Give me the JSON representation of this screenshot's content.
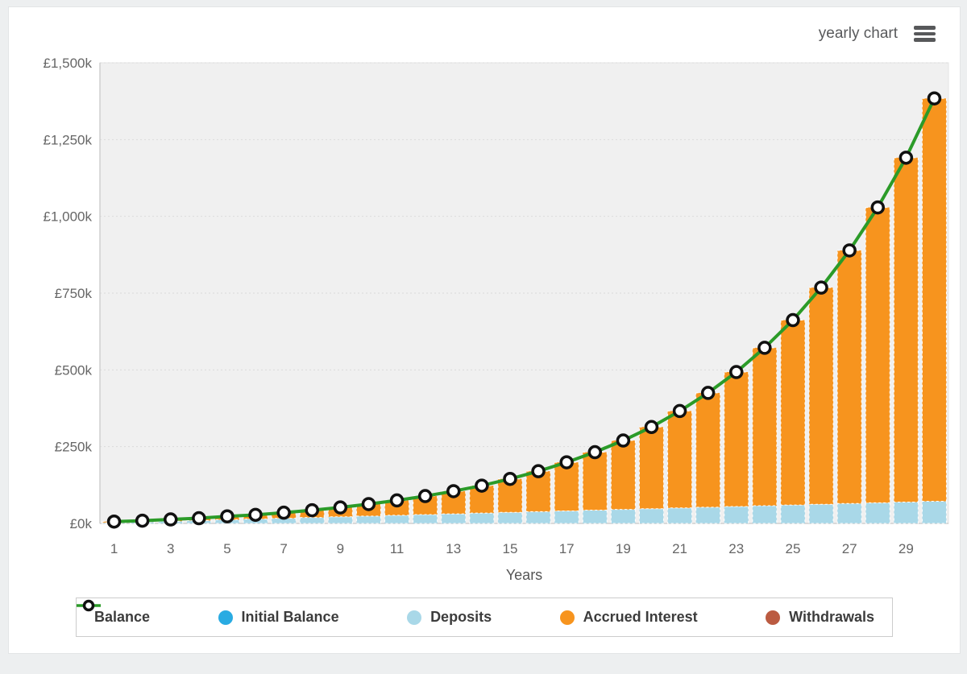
{
  "header": {
    "title": "yearly chart"
  },
  "chart_data": {
    "type": "stacked-bar-with-line",
    "title": "",
    "xlabel": "Years",
    "ylabel": "",
    "x": [
      1,
      2,
      3,
      4,
      5,
      6,
      7,
      8,
      9,
      10,
      11,
      12,
      13,
      14,
      15,
      16,
      17,
      18,
      19,
      20,
      21,
      22,
      23,
      24,
      25,
      26,
      27,
      28,
      29,
      30
    ],
    "x_tick_labels": [
      "1",
      "3",
      "5",
      "7",
      "9",
      "11",
      "13",
      "15",
      "17",
      "19",
      "21",
      "23",
      "25",
      "27",
      "29"
    ],
    "ylim": [
      0,
      1500
    ],
    "y_unit": "thousand GBP",
    "y_tick_values": [
      0,
      250,
      500,
      750,
      1000,
      1250,
      1500
    ],
    "y_tick_labels": [
      "£0k",
      "£250k",
      "£500k",
      "£750k",
      "£1,000k",
      "£1,250k",
      "£1,500k"
    ],
    "grid": "horizontal-dotted",
    "legend_position": "bottom",
    "plot_bg": "#F0F0F0",
    "series": [
      {
        "name": "Balance",
        "type": "line",
        "color": "#2B9B28",
        "marker": "open-circle",
        "values": [
          6,
          9,
          13,
          17,
          23,
          28,
          35,
          43,
          52,
          63,
          75,
          89,
          105,
          123,
          145,
          170,
          199,
          232,
          270,
          314,
          366,
          425,
          493,
          572,
          662,
          768,
          889,
          1029,
          1191,
          1384
        ]
      },
      {
        "name": "Initial Balance",
        "type": "bar",
        "color": "#29ABE2",
        "visible_bars": false,
        "values": []
      },
      {
        "name": "Deposits",
        "type": "bar",
        "color": "#A9D8E8",
        "visible_bars": true,
        "values": [
          2.4,
          4.8,
          7.2,
          9.6,
          12,
          14.4,
          16.8,
          19.2,
          21.6,
          24,
          26.4,
          28.8,
          31.2,
          33.6,
          36,
          38.4,
          40.8,
          43.2,
          45.6,
          48,
          50.4,
          52.8,
          55.2,
          57.6,
          60,
          62.4,
          64.8,
          67.2,
          69.6,
          72
        ]
      },
      {
        "name": "Accrued Interest",
        "type": "bar",
        "color": "#F7941E",
        "visible_bars": true,
        "values": [
          3.6,
          4.2,
          5.8,
          7.4,
          11,
          13.6,
          18.2,
          23.8,
          30.4,
          39,
          48.6,
          60.2,
          73.8,
          89.4,
          109,
          131.6,
          158.2,
          188.8,
          224.4,
          266,
          315.6,
          372.2,
          437.8,
          514.4,
          602,
          705.6,
          824.2,
          961.8,
          1121.4,
          1312
        ]
      },
      {
        "name": "Withdrawals",
        "type": "bar",
        "color": "#BB5B41",
        "visible_bars": false,
        "values": []
      }
    ]
  },
  "legend": {
    "items": [
      {
        "label": "Balance",
        "swatch": "line-marker",
        "color": "#2B9B28"
      },
      {
        "label": "Initial Balance",
        "swatch": "circle",
        "color": "#29ABE2"
      },
      {
        "label": "Deposits",
        "swatch": "circle",
        "color": "#A9D8E8"
      },
      {
        "label": "Accrued Interest",
        "swatch": "circle",
        "color": "#F7941E"
      },
      {
        "label": "Withdrawals",
        "swatch": "circle",
        "color": "#BB5B41"
      }
    ]
  },
  "colors": {
    "page_bg": "#EDEFF0",
    "card_bg": "#FFFFFF",
    "plot_bg": "#F0F0F0",
    "grid": "#DADADA",
    "axis": "#CFCFCF",
    "tick_text": "#666666",
    "title_text": "#58595B",
    "legend_text": "#3C3C3C",
    "marker_stroke": "#111111",
    "marker_fill": "#FFFFFF"
  }
}
